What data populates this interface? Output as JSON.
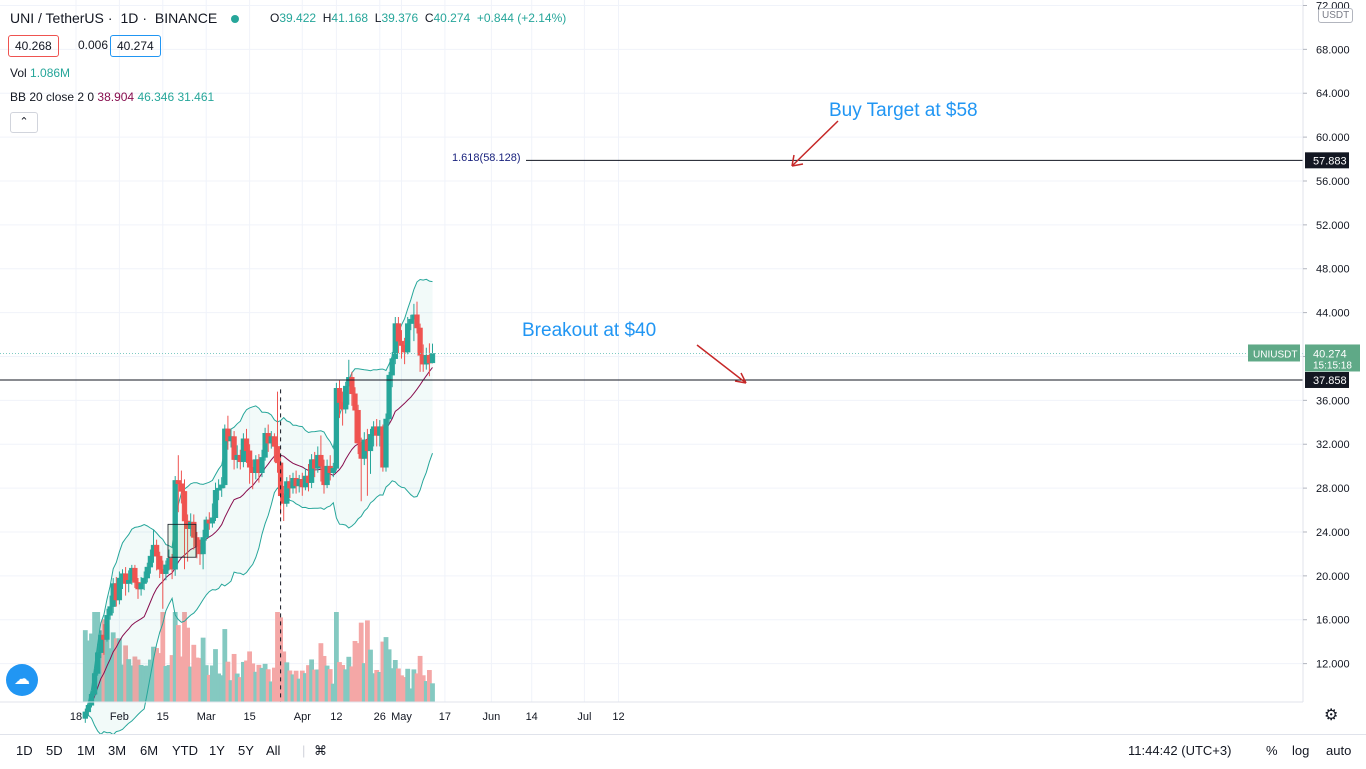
{
  "header": {
    "symbol": "UNI / TetherUS",
    "interval": "1D",
    "exchange": "BINANCE",
    "ohlc": {
      "o_label": "O",
      "o": "39.422",
      "h_label": "H",
      "h": "41.168",
      "l_label": "L",
      "l": "39.376",
      "c_label": "C",
      "c": "40.274",
      "change": "+0.844 (+2.14%)"
    },
    "bid": "40.268",
    "spread": "0.006",
    "ask": "40.274",
    "vol_label": "Vol",
    "vol_value": "1.086M",
    "bb_label": "BB 20 close 2 0",
    "bb_basis": "38.904",
    "bb_upper": "46.346",
    "bb_lower": "31.461",
    "collapse_icon": "chevron-up-icon"
  },
  "price_axis": {
    "currency": "USDT",
    "ticks": [
      "72.000",
      "68.000",
      "64.000",
      "60.000",
      "56.000",
      "52.000",
      "48.000",
      "44.000",
      "40.000",
      "36.000",
      "32.000",
      "28.000",
      "24.000",
      "20.000",
      "16.000",
      "12.000"
    ],
    "fib_label_box": "57.883",
    "symbol_tag": "UNIUSDT",
    "last_price_box": "40.274",
    "countdown": "15:15:18",
    "support_box": "37.858"
  },
  "time_axis": {
    "ticks": [
      "18",
      "Feb",
      "15",
      "Mar",
      "15",
      "Apr",
      "12",
      "26",
      "May",
      "17",
      "Jun",
      "14",
      "Jul",
      "12"
    ]
  },
  "annotations": {
    "buy_target": "Buy Target at $58",
    "breakout": "Breakout at $40",
    "fib_label": "1.618(58.128)"
  },
  "bottom_bar": {
    "timeframes": [
      "1D",
      "5D",
      "1M",
      "3M",
      "6M",
      "YTD",
      "1Y",
      "5Y",
      "All"
    ],
    "clock": "11:44:42 (UTC+3)",
    "percent": "%",
    "log": "log",
    "auto": "auto"
  },
  "colors": {
    "up": "#26a69a",
    "down": "#ef5350",
    "bb_band": "#26a69a",
    "bb_basis": "#880e4f",
    "annotation": "#2196f3",
    "arrow": "#c62828"
  },
  "chart_data": {
    "type": "candlestick",
    "title": "UNI / TetherUS · 1D · BINANCE",
    "ylim": [
      8.5,
      72.5
    ],
    "y_scale": "linear",
    "legend": "top-left",
    "grid": true,
    "support_level": 37.858,
    "fib_extension": 58.128,
    "candles": [
      {
        "d": "2021-01-21",
        "o": 7.0,
        "h": 7.9,
        "c": 7.6,
        "l": 6.6
      },
      {
        "d": "2021-01-22",
        "o": 7.6,
        "h": 8.4,
        "c": 8.2,
        "l": 7.2
      },
      {
        "d": "2021-01-23",
        "o": 8.2,
        "h": 9.5,
        "c": 9.2,
        "l": 8.0
      },
      {
        "d": "2021-01-24",
        "o": 9.2,
        "h": 11.5,
        "c": 11.1,
        "l": 9.0
      },
      {
        "d": "2021-01-25",
        "o": 11.1,
        "h": 13.8,
        "c": 13.0,
        "l": 10.9
      },
      {
        "d": "2021-01-26",
        "o": 13.0,
        "h": 15.0,
        "c": 14.6,
        "l": 12.5
      },
      {
        "d": "2021-01-27",
        "o": 14.6,
        "h": 15.6,
        "c": 14.2,
        "l": 12.8
      },
      {
        "d": "2021-01-28",
        "o": 14.2,
        "h": 17.0,
        "c": 16.4,
        "l": 14.0
      },
      {
        "d": "2021-01-29",
        "o": 16.4,
        "h": 18.2,
        "c": 17.2,
        "l": 16.0
      },
      {
        "d": "2021-01-30",
        "o": 17.2,
        "h": 19.8,
        "c": 19.3,
        "l": 16.6
      },
      {
        "d": "2021-01-31",
        "o": 19.3,
        "h": 19.9,
        "c": 17.8,
        "l": 17.2
      },
      {
        "d": "2021-02-01",
        "o": 17.8,
        "h": 20.4,
        "c": 19.8,
        "l": 17.4
      },
      {
        "d": "2021-02-02",
        "o": 19.8,
        "h": 20.6,
        "c": 20.2,
        "l": 18.8
      },
      {
        "d": "2021-02-03",
        "o": 20.2,
        "h": 20.8,
        "c": 19.3,
        "l": 18.2
      },
      {
        "d": "2021-02-04",
        "o": 19.3,
        "h": 20.5,
        "c": 19.6,
        "l": 18.5
      },
      {
        "d": "2021-02-05",
        "o": 19.6,
        "h": 21.0,
        "c": 20.7,
        "l": 19.2
      },
      {
        "d": "2021-02-06",
        "o": 20.7,
        "h": 21.0,
        "c": 19.4,
        "l": 18.9
      },
      {
        "d": "2021-02-07",
        "o": 19.4,
        "h": 19.8,
        "c": 18.8,
        "l": 17.9
      },
      {
        "d": "2021-02-08",
        "o": 18.8,
        "h": 19.9,
        "c": 19.3,
        "l": 18.2
      },
      {
        "d": "2021-02-09",
        "o": 19.3,
        "h": 20.4,
        "c": 19.8,
        "l": 18.7
      },
      {
        "d": "2021-02-10",
        "o": 19.8,
        "h": 21.2,
        "c": 20.8,
        "l": 19.4
      },
      {
        "d": "2021-02-11",
        "o": 20.8,
        "h": 22.4,
        "c": 21.8,
        "l": 20.2
      },
      {
        "d": "2021-02-12",
        "o": 21.8,
        "h": 24.2,
        "c": 22.8,
        "l": 21.2
      },
      {
        "d": "2021-02-13",
        "o": 22.8,
        "h": 23.3,
        "c": 21.8,
        "l": 20.5
      },
      {
        "d": "2021-02-14",
        "o": 21.8,
        "h": 22.2,
        "c": 20.6,
        "l": 19.8
      },
      {
        "d": "2021-02-15",
        "o": 20.6,
        "h": 21.4,
        "c": 20.2,
        "l": 17.0
      },
      {
        "d": "2021-02-16",
        "o": 20.2,
        "h": 21.4,
        "c": 21.0,
        "l": 19.6
      },
      {
        "d": "2021-02-17",
        "o": 21.0,
        "h": 22.4,
        "c": 21.6,
        "l": 20.5
      },
      {
        "d": "2021-02-18",
        "o": 21.6,
        "h": 22.0,
        "c": 20.6,
        "l": 19.7
      },
      {
        "d": "2021-02-19",
        "o": 20.6,
        "h": 29.1,
        "c": 28.7,
        "l": 20.0
      },
      {
        "d": "2021-02-20",
        "o": 28.7,
        "h": 31.0,
        "c": 28.4,
        "l": 25.8
      },
      {
        "d": "2021-02-21",
        "o": 28.4,
        "h": 29.6,
        "c": 27.7,
        "l": 26.6
      },
      {
        "d": "2021-02-22",
        "o": 27.7,
        "h": 28.8,
        "c": 25.0,
        "l": 20.6
      },
      {
        "d": "2021-02-23",
        "o": 25.0,
        "h": 25.6,
        "c": 24.3,
        "l": 21.3
      },
      {
        "d": "2021-02-24",
        "o": 24.3,
        "h": 25.7,
        "c": 24.9,
        "l": 23.6
      },
      {
        "d": "2021-02-25",
        "o": 24.9,
        "h": 25.6,
        "c": 23.5,
        "l": 22.4
      },
      {
        "d": "2021-02-26",
        "o": 23.5,
        "h": 24.0,
        "c": 22.7,
        "l": 21.6
      },
      {
        "d": "2021-02-27",
        "o": 22.7,
        "h": 23.3,
        "c": 22.0,
        "l": 21.0
      },
      {
        "d": "2021-02-28",
        "o": 22.0,
        "h": 24.2,
        "c": 23.5,
        "l": 20.6
      },
      {
        "d": "2021-03-01",
        "o": 23.5,
        "h": 25.4,
        "c": 25.1,
        "l": 23.2
      },
      {
        "d": "2021-03-02",
        "o": 25.1,
        "h": 25.8,
        "c": 24.8,
        "l": 24.2
      },
      {
        "d": "2021-03-03",
        "o": 24.8,
        "h": 26.6,
        "c": 25.3,
        "l": 24.4
      },
      {
        "d": "2021-03-04",
        "o": 25.3,
        "h": 28.5,
        "c": 27.8,
        "l": 25.0
      },
      {
        "d": "2021-03-05",
        "o": 27.8,
        "h": 28.8,
        "c": 28.0,
        "l": 26.9
      },
      {
        "d": "2021-03-06",
        "o": 28.0,
        "h": 29.0,
        "c": 28.3,
        "l": 27.2
      },
      {
        "d": "2021-03-07",
        "o": 28.3,
        "h": 33.8,
        "c": 33.4,
        "l": 28.0
      },
      {
        "d": "2021-03-08",
        "o": 33.4,
        "h": 34.6,
        "c": 32.3,
        "l": 31.5
      },
      {
        "d": "2021-03-09",
        "o": 32.3,
        "h": 33.4,
        "c": 32.7,
        "l": 31.7
      },
      {
        "d": "2021-03-10",
        "o": 32.7,
        "h": 33.2,
        "c": 30.6,
        "l": 29.7
      },
      {
        "d": "2021-03-11",
        "o": 30.6,
        "h": 31.9,
        "c": 31.0,
        "l": 29.8
      },
      {
        "d": "2021-03-12",
        "o": 31.0,
        "h": 31.5,
        "c": 30.4,
        "l": 29.7
      },
      {
        "d": "2021-03-13",
        "o": 30.4,
        "h": 33.0,
        "c": 32.5,
        "l": 29.9
      },
      {
        "d": "2021-03-14",
        "o": 32.5,
        "h": 33.4,
        "c": 31.4,
        "l": 30.3
      },
      {
        "d": "2021-03-15",
        "o": 31.4,
        "h": 32.0,
        "c": 29.9,
        "l": 28.4
      },
      {
        "d": "2021-03-16",
        "o": 29.9,
        "h": 30.6,
        "c": 29.4,
        "l": 27.9
      },
      {
        "d": "2021-03-17",
        "o": 29.4,
        "h": 31.0,
        "c": 30.6,
        "l": 28.8
      },
      {
        "d": "2021-03-18",
        "o": 30.6,
        "h": 31.1,
        "c": 29.4,
        "l": 28.5
      },
      {
        "d": "2021-03-19",
        "o": 29.4,
        "h": 31.5,
        "c": 30.8,
        "l": 29.0
      },
      {
        "d": "2021-03-20",
        "o": 30.8,
        "h": 33.5,
        "c": 33.0,
        "l": 30.5
      },
      {
        "d": "2021-03-21",
        "o": 33.0,
        "h": 33.8,
        "c": 32.1,
        "l": 31.3
      },
      {
        "d": "2021-03-22",
        "o": 32.1,
        "h": 33.2,
        "c": 32.7,
        "l": 31.6
      },
      {
        "d": "2021-03-23",
        "o": 32.7,
        "h": 33.0,
        "c": 31.8,
        "l": 30.4
      },
      {
        "d": "2021-03-24",
        "o": 31.8,
        "h": 36.8,
        "c": 30.3,
        "l": 29.4
      },
      {
        "d": "2021-03-25",
        "o": 30.3,
        "h": 31.1,
        "c": 27.3,
        "l": 25.6
      },
      {
        "d": "2021-03-26",
        "o": 27.3,
        "h": 28.2,
        "c": 26.6,
        "l": 25.0
      },
      {
        "d": "2021-03-27",
        "o": 26.6,
        "h": 29.0,
        "c": 28.6,
        "l": 26.3
      },
      {
        "d": "2021-03-28",
        "o": 28.6,
        "h": 29.2,
        "c": 28.0,
        "l": 27.1
      },
      {
        "d": "2021-03-29",
        "o": 28.0,
        "h": 29.4,
        "c": 28.9,
        "l": 27.5
      },
      {
        "d": "2021-03-30",
        "o": 28.9,
        "h": 29.6,
        "c": 28.2,
        "l": 27.5
      },
      {
        "d": "2021-03-31",
        "o": 28.2,
        "h": 29.2,
        "c": 28.8,
        "l": 27.6
      },
      {
        "d": "2021-04-01",
        "o": 28.8,
        "h": 29.4,
        "c": 28.1,
        "l": 27.3
      },
      {
        "d": "2021-04-02",
        "o": 28.1,
        "h": 29.8,
        "c": 29.1,
        "l": 27.8
      },
      {
        "d": "2021-04-03",
        "o": 29.1,
        "h": 30.2,
        "c": 28.5,
        "l": 27.7
      },
      {
        "d": "2021-04-04",
        "o": 28.5,
        "h": 31.1,
        "c": 30.6,
        "l": 28.0
      },
      {
        "d": "2021-04-05",
        "o": 30.6,
        "h": 31.3,
        "c": 29.8,
        "l": 29.0
      },
      {
        "d": "2021-04-06",
        "o": 29.8,
        "h": 31.8,
        "c": 31.0,
        "l": 29.4
      },
      {
        "d": "2021-04-07",
        "o": 31.0,
        "h": 32.8,
        "c": 30.0,
        "l": 28.6
      },
      {
        "d": "2021-04-08",
        "o": 30.0,
        "h": 30.6,
        "c": 28.3,
        "l": 27.5
      },
      {
        "d": "2021-04-09",
        "o": 28.3,
        "h": 30.6,
        "c": 30.0,
        "l": 28.0
      },
      {
        "d": "2021-04-10",
        "o": 30.0,
        "h": 31.0,
        "c": 29.4,
        "l": 28.7
      },
      {
        "d": "2021-04-11",
        "o": 29.4,
        "h": 30.3,
        "c": 29.8,
        "l": 29.0
      },
      {
        "d": "2021-04-12",
        "o": 29.8,
        "h": 37.6,
        "c": 37.1,
        "l": 29.6
      },
      {
        "d": "2021-04-13",
        "o": 37.1,
        "h": 37.8,
        "c": 35.8,
        "l": 34.4
      },
      {
        "d": "2021-04-14",
        "o": 35.8,
        "h": 36.8,
        "c": 35.2,
        "l": 33.7
      },
      {
        "d": "2021-04-15",
        "o": 35.2,
        "h": 37.7,
        "c": 37.3,
        "l": 34.8
      },
      {
        "d": "2021-04-16",
        "o": 37.3,
        "h": 39.7,
        "c": 38.1,
        "l": 35.6
      },
      {
        "d": "2021-04-17",
        "o": 38.1,
        "h": 38.6,
        "c": 36.6,
        "l": 35.5
      },
      {
        "d": "2021-04-18",
        "o": 36.6,
        "h": 37.2,
        "c": 35.1,
        "l": 32.1
      },
      {
        "d": "2021-04-19",
        "o": 35.1,
        "h": 35.6,
        "c": 32.1,
        "l": 31.1
      },
      {
        "d": "2021-04-20",
        "o": 32.1,
        "h": 32.6,
        "c": 30.7,
        "l": 26.8
      },
      {
        "d": "2021-04-21",
        "o": 30.7,
        "h": 33.1,
        "c": 32.4,
        "l": 30.1
      },
      {
        "d": "2021-04-22",
        "o": 32.4,
        "h": 33.4,
        "c": 31.4,
        "l": 27.3
      },
      {
        "d": "2021-04-23",
        "o": 31.4,
        "h": 33.4,
        "c": 32.9,
        "l": 29.3
      },
      {
        "d": "2021-04-24",
        "o": 32.9,
        "h": 34.1,
        "c": 33.6,
        "l": 31.8
      },
      {
        "d": "2021-04-25",
        "o": 33.6,
        "h": 34.3,
        "c": 32.8,
        "l": 31.8
      },
      {
        "d": "2021-04-26",
        "o": 32.8,
        "h": 34.2,
        "c": 33.6,
        "l": 31.8
      },
      {
        "d": "2021-04-27",
        "o": 33.6,
        "h": 33.8,
        "c": 29.9,
        "l": 29.5
      },
      {
        "d": "2021-04-28",
        "o": 29.9,
        "h": 34.8,
        "c": 34.3,
        "l": 29.5
      },
      {
        "d": "2021-04-29",
        "o": 34.3,
        "h": 38.6,
        "c": 38.3,
        "l": 33.8
      },
      {
        "d": "2021-04-30",
        "o": 38.3,
        "h": 40.4,
        "c": 39.8,
        "l": 37.2
      },
      {
        "d": "2021-05-01",
        "o": 39.8,
        "h": 43.6,
        "c": 43.0,
        "l": 39.3
      },
      {
        "d": "2021-05-02",
        "o": 43.0,
        "h": 43.6,
        "c": 41.4,
        "l": 40.3
      },
      {
        "d": "2021-05-03",
        "o": 41.4,
        "h": 42.4,
        "c": 41.0,
        "l": 39.8
      },
      {
        "d": "2021-05-04",
        "o": 41.0,
        "h": 41.7,
        "c": 40.4,
        "l": 39.3
      },
      {
        "d": "2021-05-05",
        "o": 40.4,
        "h": 43.6,
        "c": 43.0,
        "l": 40.2
      },
      {
        "d": "2021-05-06",
        "o": 43.0,
        "h": 43.8,
        "c": 43.4,
        "l": 42.4
      },
      {
        "d": "2021-05-07",
        "o": 43.4,
        "h": 44.8,
        "c": 43.8,
        "l": 41.4
      },
      {
        "d": "2021-05-08",
        "o": 43.8,
        "h": 45.0,
        "c": 42.6,
        "l": 42.1
      },
      {
        "d": "2021-05-09",
        "o": 42.6,
        "h": 43.0,
        "c": 40.1,
        "l": 38.6
      },
      {
        "d": "2021-05-10",
        "o": 40.1,
        "h": 41.1,
        "c": 39.3,
        "l": 38.6
      },
      {
        "d": "2021-05-11",
        "o": 39.3,
        "h": 40.8,
        "c": 40.1,
        "l": 38.8
      },
      {
        "d": "2021-05-12",
        "o": 40.1,
        "h": 41.2,
        "c": 39.4,
        "l": 38.2
      },
      {
        "d": "2021-05-13",
        "o": 39.422,
        "h": 41.168,
        "c": 40.274,
        "l": 39.376
      }
    ]
  }
}
